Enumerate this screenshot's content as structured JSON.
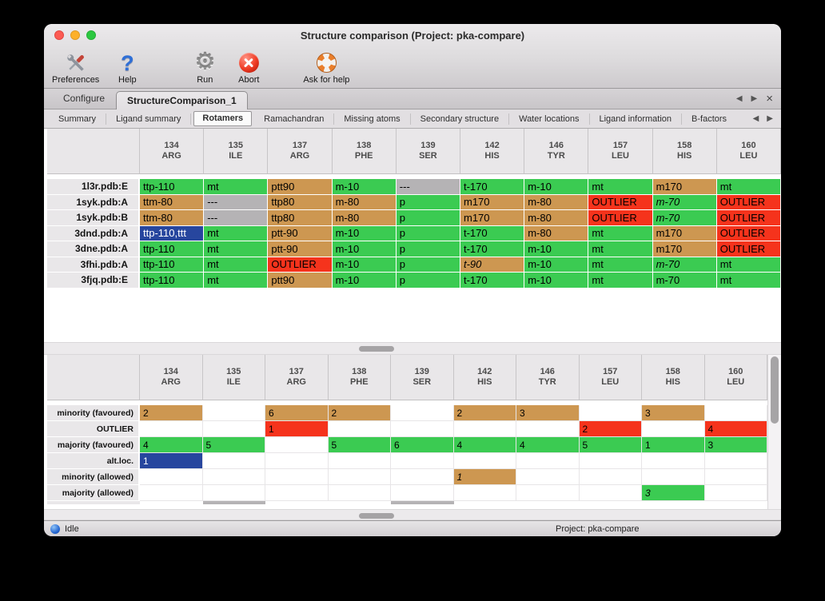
{
  "window": {
    "title": "Structure comparison (Project: pka-compare)"
  },
  "traffic_lights": {
    "close": "#fc5b53",
    "minimize": "#fdb02a",
    "zoom": "#2bc840"
  },
  "toolbar": {
    "items": [
      {
        "label": "Preferences",
        "icon": "preferences-tools-icon"
      },
      {
        "label": "Help",
        "icon": "help-question-icon"
      },
      {
        "label": "Run",
        "icon": "run-gear-icon"
      },
      {
        "label": "Abort",
        "icon": "abort-cross-icon"
      },
      {
        "label": "Ask for help",
        "icon": "life-ring-icon"
      }
    ]
  },
  "tabs": {
    "items": [
      {
        "label": "Configure",
        "active": false
      },
      {
        "label": "StructureComparison_1",
        "active": true
      }
    ],
    "nav_prev": "◀",
    "nav_next": "▶",
    "close": "×"
  },
  "subtabs": {
    "items": [
      "Summary",
      "Ligand summary",
      "Rotamers",
      "Ramachandran",
      "Missing atoms",
      "Secondary structure",
      "Water locations",
      "Ligand information",
      "B-factors"
    ],
    "selected": "Rotamers",
    "nav_prev": "◀",
    "nav_next": "▶"
  },
  "columns": [
    {
      "num": "134",
      "res": "ARG"
    },
    {
      "num": "135",
      "res": "ILE"
    },
    {
      "num": "137",
      "res": "ARG"
    },
    {
      "num": "138",
      "res": "PHE"
    },
    {
      "num": "139",
      "res": "SER"
    },
    {
      "num": "142",
      "res": "HIS"
    },
    {
      "num": "146",
      "res": "TYR"
    },
    {
      "num": "157",
      "res": "LEU"
    },
    {
      "num": "158",
      "res": "HIS"
    },
    {
      "num": "160",
      "res": "LEU"
    }
  ],
  "cell_colors": {
    "majority": "#3bcb52",
    "minority": "#cd9751",
    "outlier": "#f5331c",
    "missing": "#b5b3b5",
    "altloc": "#27469e"
  },
  "rotamer_table": {
    "rows": [
      {
        "name": "1l3r.pdb:E",
        "cells": [
          {
            "text": "ttp-110",
            "type": "majority"
          },
          {
            "text": "mt",
            "type": "majority"
          },
          {
            "text": "ptt90",
            "type": "minority"
          },
          {
            "text": "m-10",
            "type": "majority"
          },
          {
            "text": "---",
            "type": "missing"
          },
          {
            "text": "t-170",
            "type": "majority"
          },
          {
            "text": "m-10",
            "type": "majority"
          },
          {
            "text": "mt",
            "type": "majority"
          },
          {
            "text": "m170",
            "type": "minority"
          },
          {
            "text": "mt",
            "type": "majority"
          }
        ]
      },
      {
        "name": "1syk.pdb:A",
        "cells": [
          {
            "text": "ttm-80",
            "type": "minority"
          },
          {
            "text": "---",
            "type": "missing"
          },
          {
            "text": "ttp80",
            "type": "minority"
          },
          {
            "text": "m-80",
            "type": "minority"
          },
          {
            "text": "p",
            "type": "majority"
          },
          {
            "text": "m170",
            "type": "minority"
          },
          {
            "text": "m-80",
            "type": "minority"
          },
          {
            "text": "OUTLIER",
            "type": "outlier"
          },
          {
            "text": "m-70",
            "type": "majority",
            "italic": true
          },
          {
            "text": "OUTLIER",
            "type": "outlier"
          }
        ]
      },
      {
        "name": "1syk.pdb:B",
        "cells": [
          {
            "text": "ttm-80",
            "type": "minority"
          },
          {
            "text": "---",
            "type": "missing"
          },
          {
            "text": "ttp80",
            "type": "minority"
          },
          {
            "text": "m-80",
            "type": "minority"
          },
          {
            "text": "p",
            "type": "majority"
          },
          {
            "text": "m170",
            "type": "minority"
          },
          {
            "text": "m-80",
            "type": "minority"
          },
          {
            "text": "OUTLIER",
            "type": "outlier"
          },
          {
            "text": "m-70",
            "type": "majority",
            "italic": true
          },
          {
            "text": "OUTLIER",
            "type": "outlier"
          }
        ]
      },
      {
        "name": "3dnd.pdb:A",
        "cells": [
          {
            "text": "ttp-110,ttt",
            "type": "altloc"
          },
          {
            "text": "mt",
            "type": "majority"
          },
          {
            "text": "ptt-90",
            "type": "minority"
          },
          {
            "text": "m-10",
            "type": "majority"
          },
          {
            "text": "p",
            "type": "majority"
          },
          {
            "text": "t-170",
            "type": "majority"
          },
          {
            "text": "m-80",
            "type": "minority"
          },
          {
            "text": "mt",
            "type": "majority"
          },
          {
            "text": "m170",
            "type": "minority"
          },
          {
            "text": "OUTLIER",
            "type": "outlier"
          }
        ]
      },
      {
        "name": "3dne.pdb:A",
        "cells": [
          {
            "text": "ttp-110",
            "type": "majority"
          },
          {
            "text": "mt",
            "type": "majority"
          },
          {
            "text": "ptt-90",
            "type": "minority"
          },
          {
            "text": "m-10",
            "type": "majority"
          },
          {
            "text": "p",
            "type": "majority"
          },
          {
            "text": "t-170",
            "type": "majority"
          },
          {
            "text": "m-10",
            "type": "majority"
          },
          {
            "text": "mt",
            "type": "majority"
          },
          {
            "text": "m170",
            "type": "minority"
          },
          {
            "text": "OUTLIER",
            "type": "outlier"
          }
        ]
      },
      {
        "name": "3fhi.pdb:A",
        "cells": [
          {
            "text": "ttp-110",
            "type": "majority"
          },
          {
            "text": "mt",
            "type": "majority"
          },
          {
            "text": "OUTLIER",
            "type": "outlier"
          },
          {
            "text": "m-10",
            "type": "majority"
          },
          {
            "text": "p",
            "type": "majority"
          },
          {
            "text": "t-90",
            "type": "minority",
            "italic": true
          },
          {
            "text": "m-10",
            "type": "majority"
          },
          {
            "text": "mt",
            "type": "majority"
          },
          {
            "text": "m-70",
            "type": "majority",
            "italic": true
          },
          {
            "text": "mt",
            "type": "majority"
          }
        ]
      },
      {
        "name": "3fjq.pdb:E",
        "cells": [
          {
            "text": "ttp-110",
            "type": "majority"
          },
          {
            "text": "mt",
            "type": "majority"
          },
          {
            "text": "ptt90",
            "type": "minority"
          },
          {
            "text": "m-10",
            "type": "majority"
          },
          {
            "text": "p",
            "type": "majority"
          },
          {
            "text": "t-170",
            "type": "majority"
          },
          {
            "text": "m-10",
            "type": "majority"
          },
          {
            "text": "mt",
            "type": "majority"
          },
          {
            "text": "m-70",
            "type": "majority"
          },
          {
            "text": "mt",
            "type": "majority"
          }
        ]
      }
    ]
  },
  "summary_table": {
    "rows": [
      {
        "name": "minority (favoured)",
        "cells": [
          {
            "text": "2",
            "type": "minority"
          },
          {
            "text": "",
            "type": "none"
          },
          {
            "text": "6",
            "type": "minority"
          },
          {
            "text": "2",
            "type": "minority"
          },
          {
            "text": "",
            "type": "none"
          },
          {
            "text": "2",
            "type": "minority"
          },
          {
            "text": "3",
            "type": "minority"
          },
          {
            "text": "",
            "type": "none"
          },
          {
            "text": "3",
            "type": "minority"
          },
          {
            "text": "",
            "type": "none"
          }
        ]
      },
      {
        "name": "OUTLIER",
        "cells": [
          {
            "text": "",
            "type": "none"
          },
          {
            "text": "",
            "type": "none"
          },
          {
            "text": "1",
            "type": "outlier"
          },
          {
            "text": "",
            "type": "none"
          },
          {
            "text": "",
            "type": "none"
          },
          {
            "text": "",
            "type": "none"
          },
          {
            "text": "",
            "type": "none"
          },
          {
            "text": "2",
            "type": "outlier"
          },
          {
            "text": "",
            "type": "none"
          },
          {
            "text": "4",
            "type": "outlier"
          }
        ]
      },
      {
        "name": "majority (favoured)",
        "cells": [
          {
            "text": "4",
            "type": "majority"
          },
          {
            "text": "5",
            "type": "majority"
          },
          {
            "text": "",
            "type": "none"
          },
          {
            "text": "5",
            "type": "majority"
          },
          {
            "text": "6",
            "type": "majority"
          },
          {
            "text": "4",
            "type": "majority"
          },
          {
            "text": "4",
            "type": "majority"
          },
          {
            "text": "5",
            "type": "majority"
          },
          {
            "text": "1",
            "type": "majority"
          },
          {
            "text": "3",
            "type": "majority"
          }
        ]
      },
      {
        "name": "alt.loc.",
        "cells": [
          {
            "text": "1",
            "type": "altloc"
          },
          {
            "text": "",
            "type": "none"
          },
          {
            "text": "",
            "type": "none"
          },
          {
            "text": "",
            "type": "none"
          },
          {
            "text": "",
            "type": "none"
          },
          {
            "text": "",
            "type": "none"
          },
          {
            "text": "",
            "type": "none"
          },
          {
            "text": "",
            "type": "none"
          },
          {
            "text": "",
            "type": "none"
          },
          {
            "text": "",
            "type": "none"
          }
        ]
      },
      {
        "name": "minority (allowed)",
        "cells": [
          {
            "text": "",
            "type": "none"
          },
          {
            "text": "",
            "type": "none"
          },
          {
            "text": "",
            "type": "none"
          },
          {
            "text": "",
            "type": "none"
          },
          {
            "text": "",
            "type": "none"
          },
          {
            "text": "1",
            "type": "minority",
            "italic": true
          },
          {
            "text": "",
            "type": "none"
          },
          {
            "text": "",
            "type": "none"
          },
          {
            "text": "",
            "type": "none"
          },
          {
            "text": "",
            "type": "none"
          }
        ]
      },
      {
        "name": "majority (allowed)",
        "cells": [
          {
            "text": "",
            "type": "none"
          },
          {
            "text": "",
            "type": "none"
          },
          {
            "text": "",
            "type": "none"
          },
          {
            "text": "",
            "type": "none"
          },
          {
            "text": "",
            "type": "none"
          },
          {
            "text": "",
            "type": "none"
          },
          {
            "text": "",
            "type": "none"
          },
          {
            "text": "",
            "type": "none"
          },
          {
            "text": "3",
            "type": "majority",
            "italic": true
          },
          {
            "text": "",
            "type": "none"
          }
        ]
      }
    ],
    "clipped_row_types": [
      "none",
      "missing",
      "none",
      "none",
      "missing",
      "none",
      "none",
      "none",
      "none",
      "none"
    ]
  },
  "statusbar": {
    "status": "Idle",
    "project": "Project: pka-compare"
  }
}
